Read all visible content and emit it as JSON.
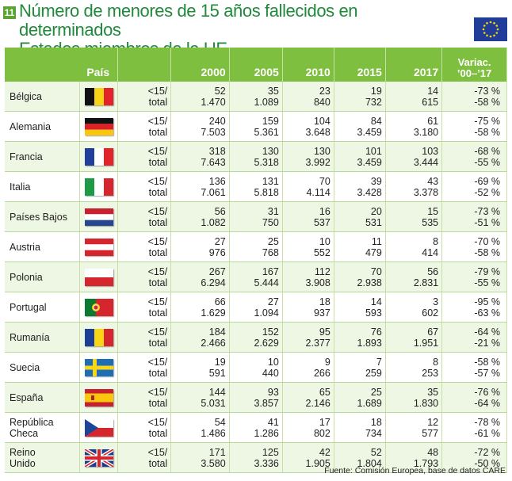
{
  "header": {
    "badge": "11",
    "title_line1": "Número de menores de 15 años fallecidos en determinados",
    "title_line2": "Estados miembros de la UE"
  },
  "table": {
    "columns": {
      "pais": "País",
      "y2000": "2000",
      "y2005": "2005",
      "y2010": "2010",
      "y2015": "2015",
      "y2017": "2017",
      "variac1": "Variac.",
      "variac2": "’00–’17"
    },
    "label_u15": "<15/",
    "label_total": "total",
    "rows": [
      {
        "country": "Bélgica",
        "flag": "belgium-flag-icon",
        "u15": [
          "52",
          "35",
          "23",
          "19",
          "14"
        ],
        "total": [
          "1.470",
          "1.089",
          "840",
          "732",
          "615"
        ],
        "var_u15": "-73 %",
        "var_total": "-58 %"
      },
      {
        "country": "Alemania",
        "flag": "germany-flag-icon",
        "u15": [
          "240",
          "159",
          "104",
          "84",
          "61"
        ],
        "total": [
          "7.503",
          "5.361",
          "3.648",
          "3.459",
          "3.180"
        ],
        "var_u15": "-75 %",
        "var_total": "-58 %"
      },
      {
        "country": "Francia",
        "flag": "france-flag-icon",
        "u15": [
          "318",
          "130",
          "130",
          "101",
          "103"
        ],
        "total": [
          "7.643",
          "5.318",
          "3.992",
          "3.459",
          "3.444"
        ],
        "var_u15": "-68 %",
        "var_total": "-55 %"
      },
      {
        "country": "Italia",
        "flag": "italy-flag-icon",
        "u15": [
          "136",
          "131",
          "70",
          "39",
          "43"
        ],
        "total": [
          "7.061",
          "5.818",
          "4.114",
          "3.428",
          "3.378"
        ],
        "var_u15": "-69 %",
        "var_total": "-52 %"
      },
      {
        "country": "Países Bajos",
        "flag": "netherlands-flag-icon",
        "u15": [
          "56",
          "31",
          "16",
          "20",
          "15"
        ],
        "total": [
          "1.082",
          "750",
          "537",
          "531",
          "535"
        ],
        "var_u15": "-73 %",
        "var_total": "-51 %"
      },
      {
        "country": "Austria",
        "flag": "austria-flag-icon",
        "u15": [
          "27",
          "25",
          "10",
          "11",
          "8"
        ],
        "total": [
          "976",
          "768",
          "552",
          "479",
          "414"
        ],
        "var_u15": "-70 %",
        "var_total": "-58 %"
      },
      {
        "country": "Polonia",
        "flag": "poland-flag-icon",
        "u15": [
          "267",
          "167",
          "112",
          "70",
          "56"
        ],
        "total": [
          "6.294",
          "5.444",
          "3.908",
          "2.938",
          "2.831"
        ],
        "var_u15": "-79 %",
        "var_total": "-55 %"
      },
      {
        "country": "Portugal",
        "flag": "portugal-flag-icon",
        "u15": [
          "66",
          "27",
          "18",
          "14",
          "3"
        ],
        "total": [
          "1.629",
          "1.094",
          "937",
          "593",
          "602"
        ],
        "var_u15": "-95 %",
        "var_total": "-63 %"
      },
      {
        "country": "Rumanía",
        "flag": "romania-flag-icon",
        "u15": [
          "184",
          "152",
          "95",
          "76",
          "67"
        ],
        "total": [
          "2.466",
          "2.629",
          "2.377",
          "1.893",
          "1.951"
        ],
        "var_u15": "-64 %",
        "var_total": "-21 %"
      },
      {
        "country": "Suecia",
        "flag": "sweden-flag-icon",
        "u15": [
          "19",
          "10",
          "9",
          "7",
          "8"
        ],
        "total": [
          "591",
          "440",
          "266",
          "259",
          "253"
        ],
        "var_u15": "-58 %",
        "var_total": "-57 %"
      },
      {
        "country": "España",
        "flag": "spain-flag-icon",
        "u15": [
          "144",
          "93",
          "65",
          "25",
          "35"
        ],
        "total": [
          "5.031",
          "3.857",
          "2.146",
          "1.689",
          "1.830"
        ],
        "var_u15": "-76 %",
        "var_total": "-64 %"
      },
      {
        "country": "República Checa",
        "flag": "czech-flag-icon",
        "u15": [
          "54",
          "41",
          "17",
          "18",
          "12"
        ],
        "total": [
          "1.486",
          "1.286",
          "802",
          "734",
          "577"
        ],
        "var_u15": "-78 %",
        "var_total": "-61 %"
      },
      {
        "country": "Reino\nUnido",
        "flag": "uk-flag-icon",
        "u15": [
          "171",
          "125",
          "42",
          "52",
          "48"
        ],
        "total": [
          "3.580",
          "3.336",
          "1.905",
          "1.804",
          "1.793"
        ],
        "var_u15": "-72 %",
        "var_total": "-50 %"
      }
    ]
  },
  "source": "Fuente: Comisión Europea, base de datos CARE"
}
